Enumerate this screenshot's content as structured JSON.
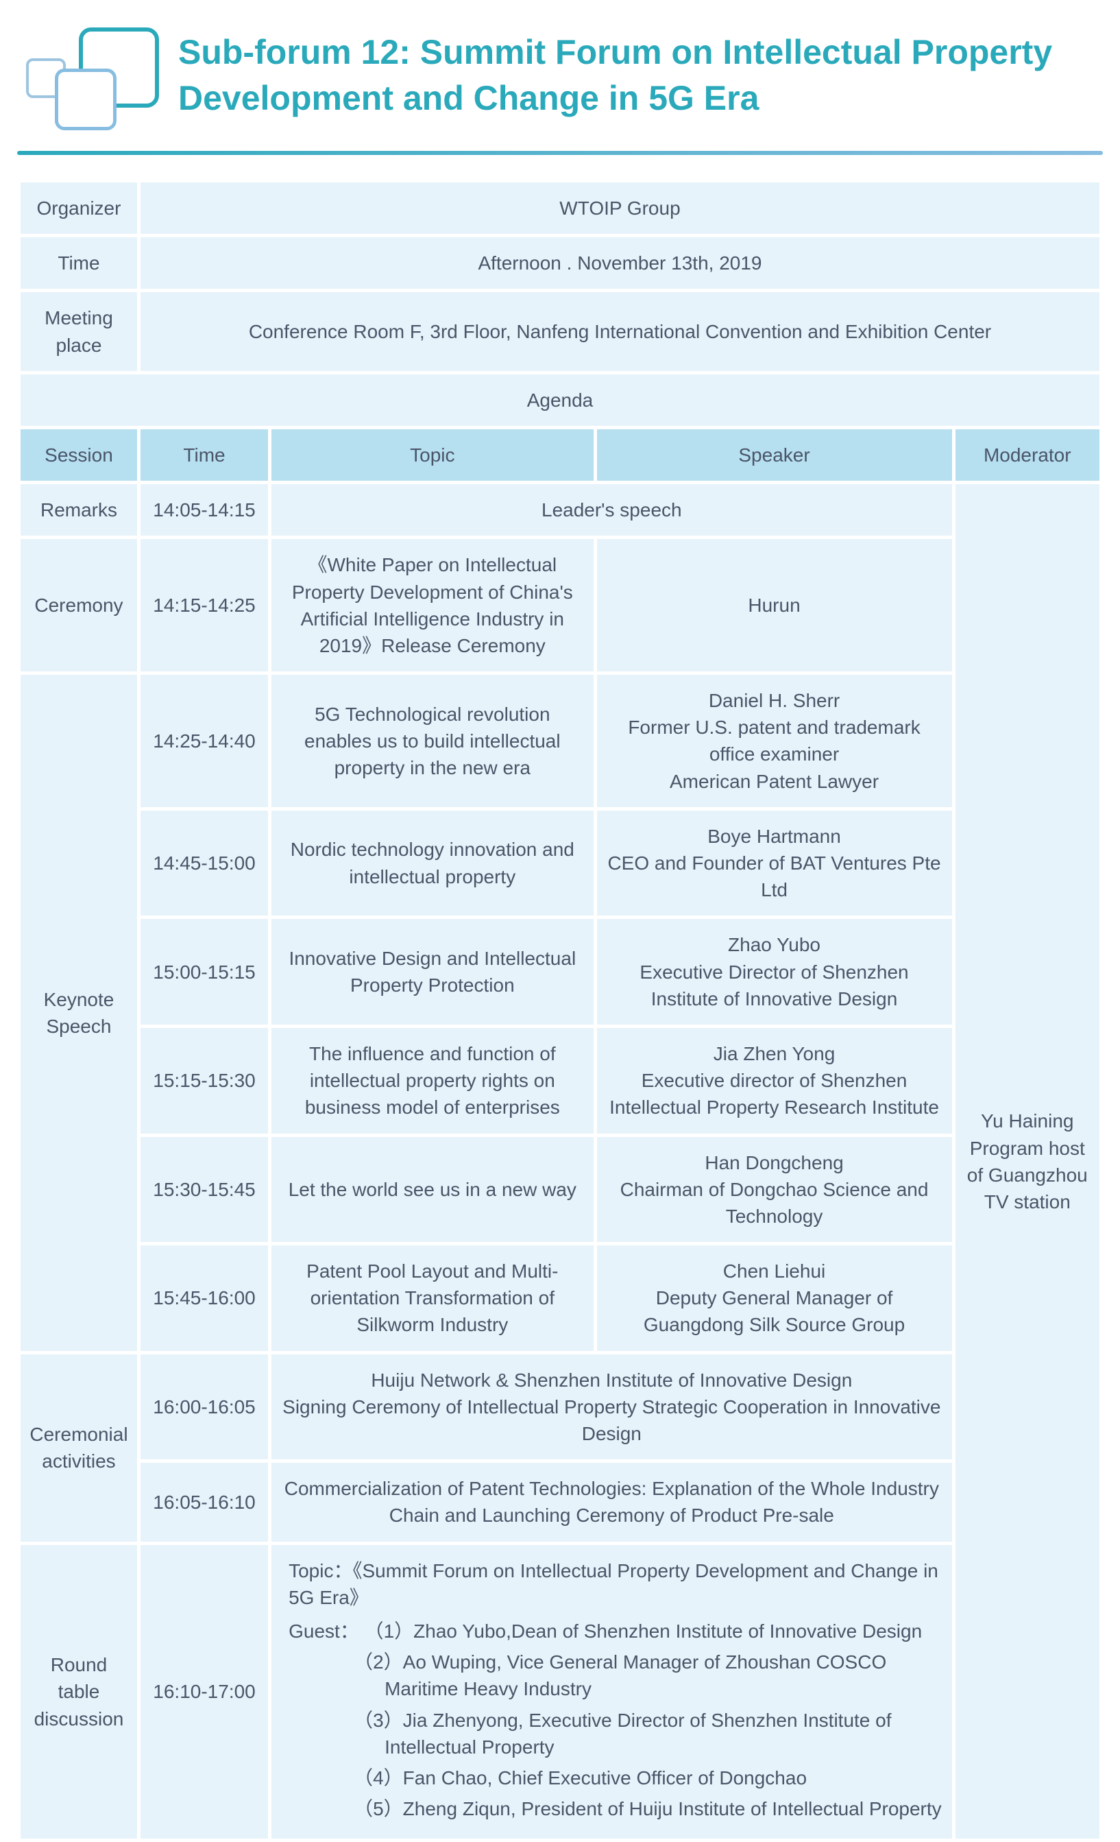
{
  "colors": {
    "accent": "#2aa9bb",
    "header_bg": "#b6dff0",
    "cell_bg": "#e6f3fa",
    "text": "#4a5568",
    "logo_light": "#9ec5e0",
    "logo_mid": "#87bde0"
  },
  "title": "Sub-forum 12: Summit Forum on Intellectual Property Development and Change in 5G Era",
  "info": {
    "organizer_label": "Organizer",
    "organizer_value": "WTOIP Group",
    "time_label": "Time",
    "time_value": "Afternoon . November 13th, 2019",
    "place_label": "Meeting place",
    "place_value": "Conference Room F, 3rd Floor, Nanfeng International Convention and Exhibition Center"
  },
  "agenda_label": "Agenda",
  "columns": {
    "session": "Session",
    "time": "Time",
    "topic": "Topic",
    "speaker": "Speaker",
    "moderator": "Moderator"
  },
  "moderator": "Yu Haining Program host of Guangzhou TV station",
  "rows": {
    "remarks": {
      "session": "Remarks",
      "time": "14:05-14:15",
      "topic": "Leader's speech"
    },
    "ceremony": {
      "session": "Ceremony",
      "time": "14:15-14:25",
      "topic": "《White Paper on Intellectual Property Development of China's Artificial Intelligence Industry in 2019》Release Ceremony",
      "speaker": "Hurun"
    },
    "keynote_label": "Keynote Speech",
    "k1": {
      "time": "14:25-14:40",
      "topic": "5G Technological revolution enables us to build intellectual property in the new era",
      "speaker": "Daniel H. Sherr\nFormer U.S. patent and trademark office examiner\nAmerican Patent Lawyer"
    },
    "k2": {
      "time": "14:45-15:00",
      "topic": "Nordic technology innovation and intellectual property",
      "speaker": "Boye Hartmann\nCEO and Founder of BAT Ventures Pte Ltd"
    },
    "k3": {
      "time": "15:00-15:15",
      "topic": "Innovative Design and Intellectual Property Protection",
      "speaker": "Zhao Yubo\nExecutive Director of Shenzhen Institute of Innovative Design"
    },
    "k4": {
      "time": "15:15-15:30",
      "topic": "The influence and function of intellectual property rights on business model of enterprises",
      "speaker": "Jia Zhen Yong\nExecutive director of Shenzhen Intellectual Property Research Institute"
    },
    "k5": {
      "time": "15:30-15:45",
      "topic": "Let the world see us in a new way",
      "speaker": "Han Dongcheng\nChairman of Dongchao Science and Technology"
    },
    "k6": {
      "time": "15:45-16:00",
      "topic": "Patent Pool Layout and Multi-orientation Transformation of Silkworm Industry",
      "speaker": "Chen Liehui\nDeputy General Manager of Guangdong Silk Source Group"
    },
    "ceremonial_label": "Ceremonial activities",
    "c1": {
      "time": "16:00-16:05",
      "topic": "Huiju Network & Shenzhen Institute of Innovative Design\nSigning Ceremony of Intellectual Property Strategic Cooperation in Innovative Design"
    },
    "c2": {
      "time": "16:05-16:10",
      "topic": "Commercialization of Patent Technologies: Explanation of the Whole Industry Chain and Launching Ceremony of Product Pre-sale"
    },
    "round_label": "Round table discussion",
    "round": {
      "time": "16:10-17:00",
      "topic_label": "Topic：《Summit Forum on Intellectual Property Development and Change in 5G Era》",
      "guest_label": "Guest：",
      "g1": "（1）Zhao Yubo,Dean of Shenzhen Institute of Innovative Design",
      "g2": "（2）Ao Wuping, Vice General Manager of Zhoushan COSCO Maritime Heavy Industry",
      "g3": "（3）Jia Zhenyong, Executive Director of Shenzhen Institute of Intellectual Property",
      "g4": "（4）Fan Chao, Chief Executive Officer of Dongchao",
      "g5": "（5）Zheng Ziqun, President of Huiju Institute of Intellectual Property"
    }
  }
}
